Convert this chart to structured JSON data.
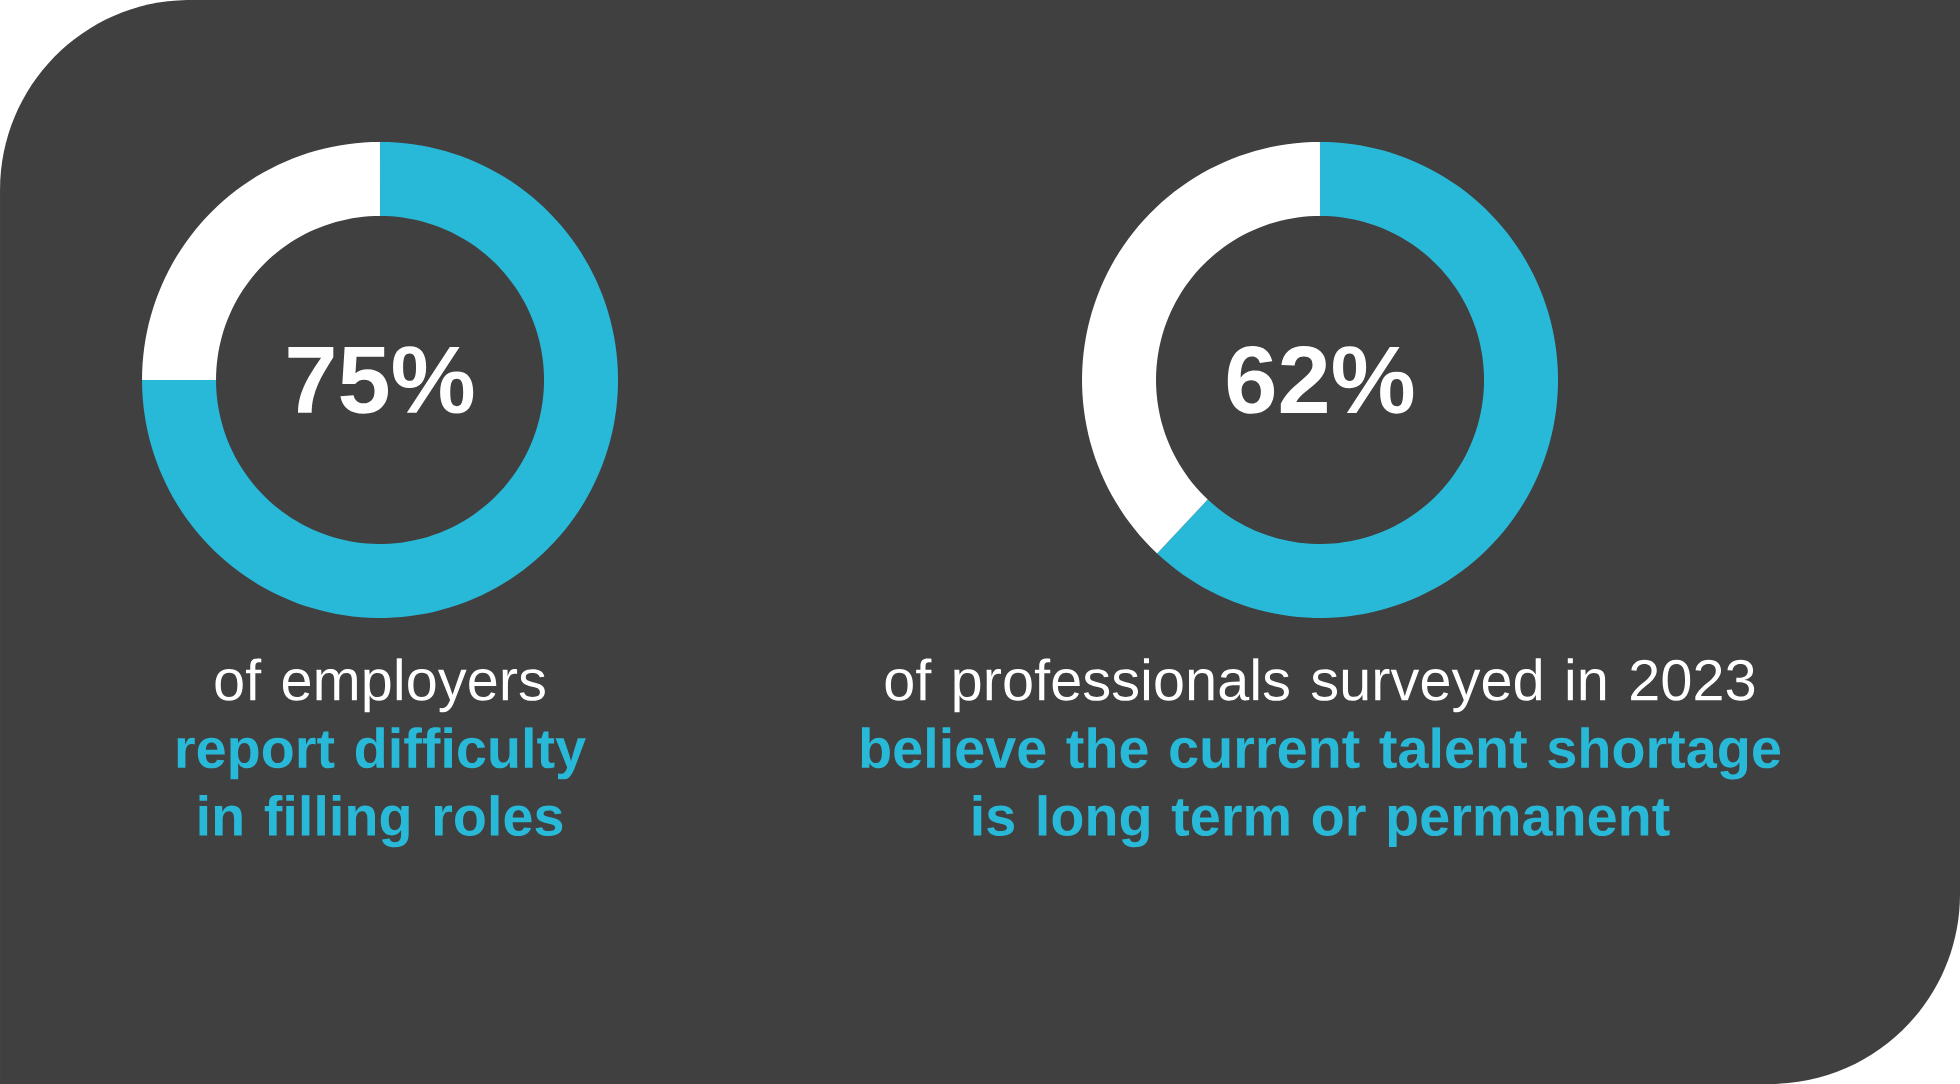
{
  "chart_data": [
    {
      "type": "donut",
      "categories": [
        null,
        null
      ],
      "values": [
        75,
        25
      ],
      "colors": [
        "#29b9d8",
        "#ffffff"
      ],
      "value_labels": [
        "75%",
        null
      ],
      "annotations": [
        "of employers",
        "report difficulty in filling roles"
      ]
    },
    {
      "type": "donut",
      "categories": [
        null,
        null
      ],
      "values": [
        62,
        38
      ],
      "colors": [
        "#29b9d8",
        "#ffffff"
      ],
      "value_labels": [
        "62%",
        null
      ],
      "annotations": [
        "of professionals surveyed in 2023",
        "believe the current talent shortage is long term or permanent"
      ]
    }
  ]
}
